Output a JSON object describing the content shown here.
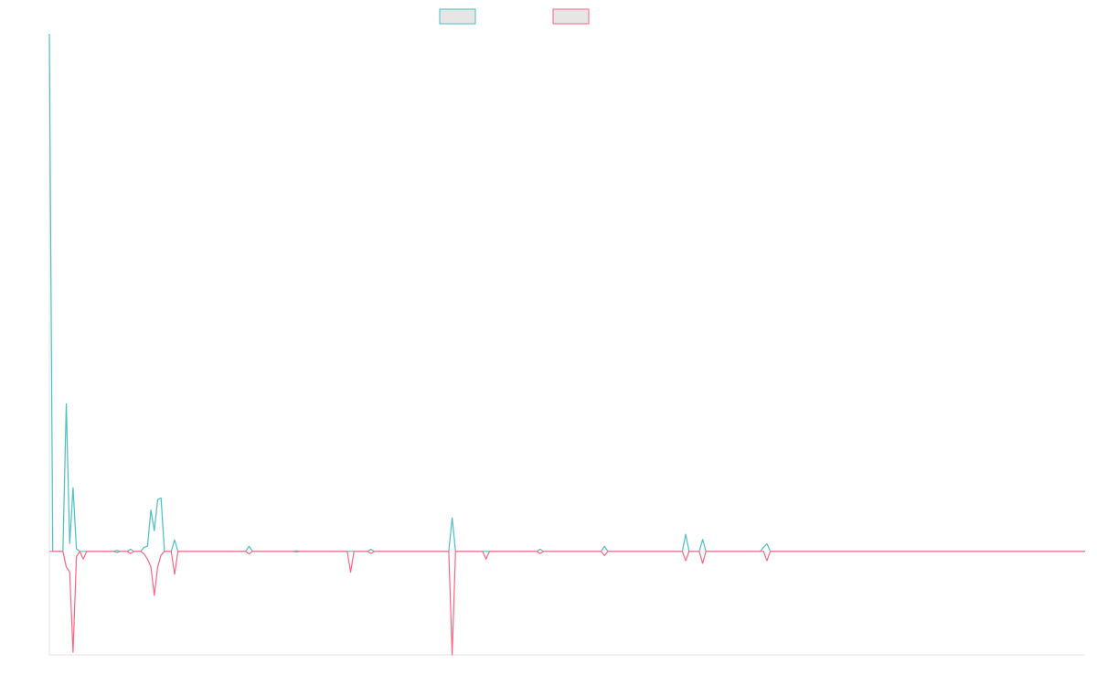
{
  "chart_data": {
    "type": "line",
    "x": [
      0,
      1,
      4,
      5,
      6,
      7,
      8,
      9,
      10,
      11,
      19,
      20,
      21,
      23,
      24,
      25,
      27,
      28,
      29,
      30,
      31,
      32,
      33,
      34,
      36,
      37,
      38,
      58,
      59,
      60,
      72,
      73,
      74,
      88,
      89,
      90,
      94,
      95,
      96,
      118,
      119,
      120,
      128,
      129,
      130,
      144,
      145,
      146,
      163,
      164,
      165,
      187,
      188,
      189,
      192,
      193,
      194,
      210,
      211,
      212,
      213,
      306
    ],
    "xlim": [
      0,
      306
    ],
    "ylim": [
      -20,
      100
    ],
    "series": [
      {
        "color": "#4bc0c0",
        "values": [
          100,
          0,
          0,
          28.5,
          1.5,
          12.3,
          0.5,
          0,
          0,
          0,
          0,
          0.2,
          0,
          0,
          0.4,
          0,
          0,
          0.8,
          1,
          8,
          4,
          10,
          10.3,
          0,
          0,
          2.2,
          0,
          0,
          1,
          0,
          0,
          0.1,
          0,
          0,
          0,
          0,
          0,
          0.4,
          0,
          0,
          6.5,
          0,
          0,
          0,
          0,
          0,
          0.4,
          0,
          0,
          1,
          0,
          0,
          3.3,
          0,
          0,
          2.3,
          0,
          0,
          0.8,
          1.5,
          0,
          0
        ]
      },
      {
        "color": "#ff6384",
        "values": [
          0,
          0,
          0,
          -3,
          -4,
          -19.5,
          -1,
          0,
          -1.5,
          0,
          0,
          -0.2,
          0,
          0,
          -0.4,
          0,
          0,
          -0.5,
          -1.5,
          -3,
          -8.5,
          -3,
          -0.7,
          0,
          0,
          -4.4,
          0,
          0,
          -0.5,
          0,
          0,
          -0.1,
          0,
          0,
          -4,
          0,
          0,
          -0.4,
          0,
          0,
          -20,
          0,
          0,
          -1.5,
          0,
          0,
          -0.4,
          0,
          0,
          -0.8,
          0,
          0,
          -1.8,
          0,
          0,
          -2.3,
          0,
          0,
          0,
          -1.8,
          0,
          0
        ]
      }
    ]
  }
}
